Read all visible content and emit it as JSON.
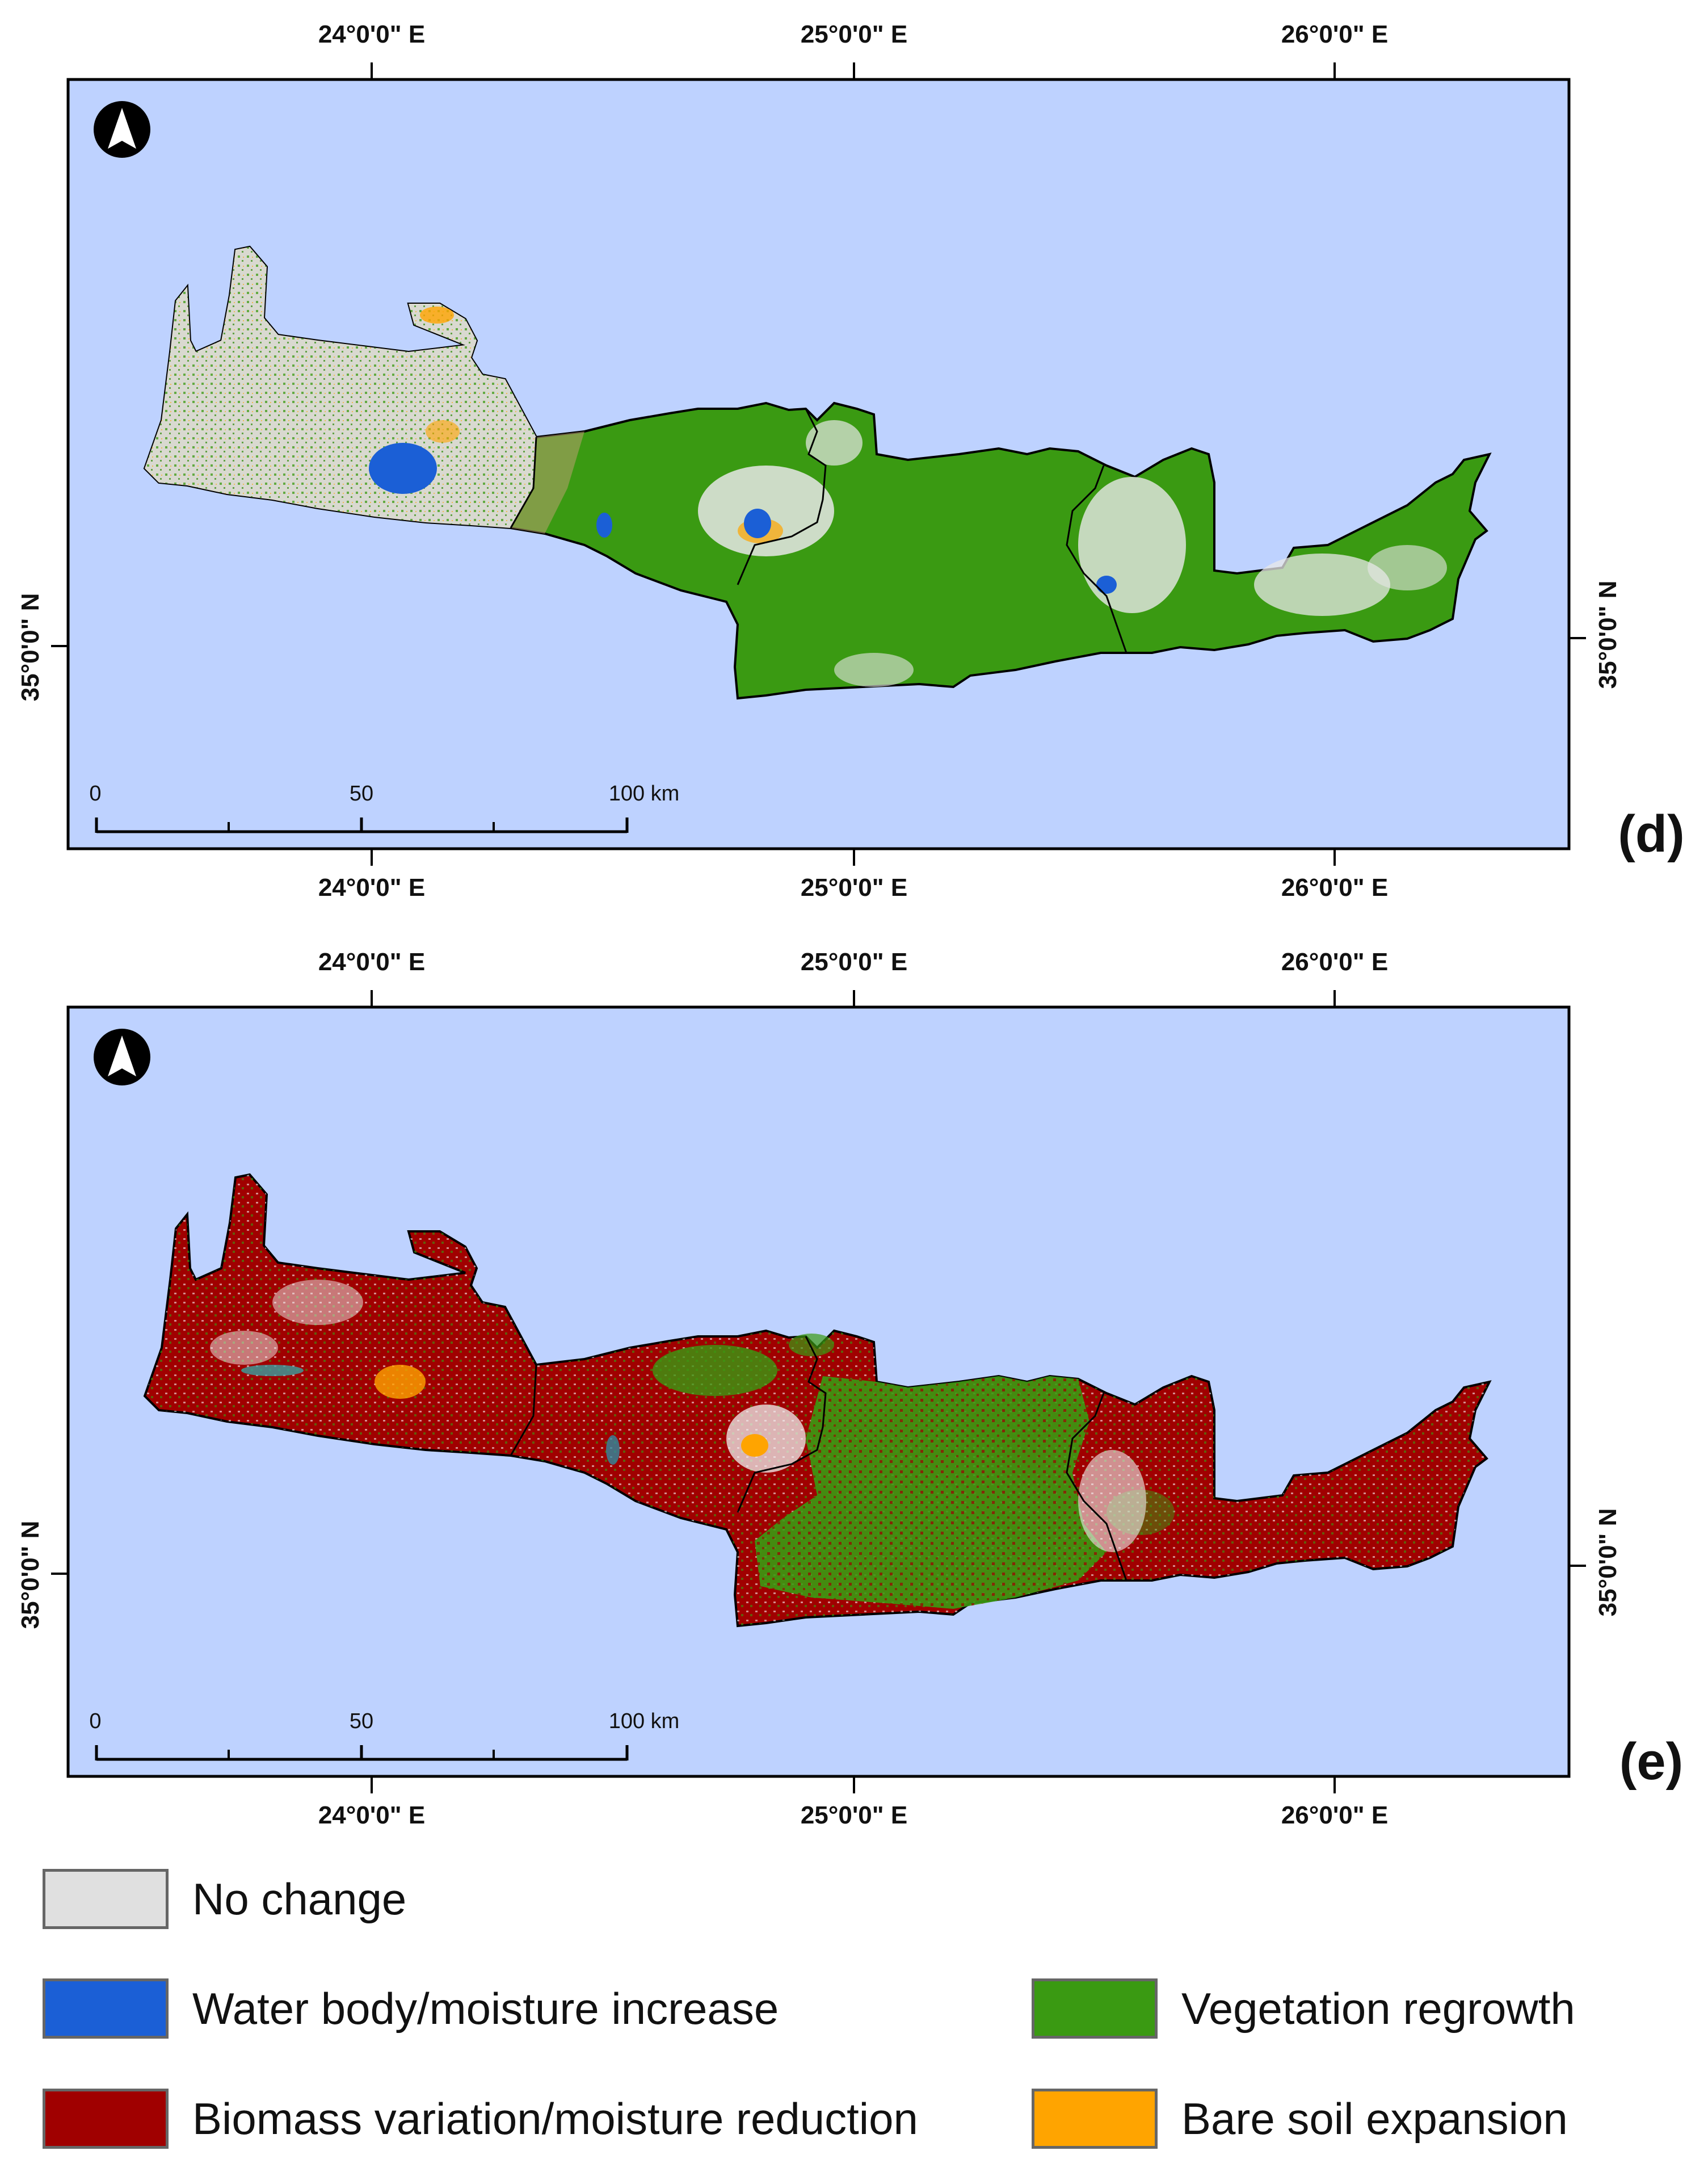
{
  "panels": [
    {
      "id": "d",
      "letter": "(d)",
      "lon_labels": [
        "24°0'0\" E",
        "25°0'0\" E",
        "26°0'0\" E"
      ],
      "lat_label": "35°0'0\" N",
      "scale": {
        "zero": "0",
        "mid": "50",
        "end": "100 km"
      },
      "dominant_class": "vegetation_regrowth"
    },
    {
      "id": "e",
      "letter": "(e)",
      "lon_labels": [
        "24°0'0\" E",
        "25°0'0\" E",
        "26°0'0\" E"
      ],
      "lat_label": "35°0'0\" N",
      "scale": {
        "zero": "0",
        "mid": "50",
        "end": "100 km"
      },
      "dominant_class": "biomass_variation"
    }
  ],
  "legend": {
    "no_change": {
      "label": "No change",
      "color": "#e0e0e0"
    },
    "water": {
      "label": "Water body/moisture increase",
      "color": "#1b5fd6"
    },
    "vegetation": {
      "label": "Vegetation regrowth",
      "color": "#3a9a12"
    },
    "biomass": {
      "label": "Biomass variation/moisture reduction",
      "color": "#a00000"
    },
    "bare_soil": {
      "label": "Bare soil expansion",
      "color": "#ffa400"
    }
  },
  "colors": {
    "sea": "#bed2ff",
    "frame": "#000000",
    "north_arrow_icon": "north-arrow-icon"
  }
}
